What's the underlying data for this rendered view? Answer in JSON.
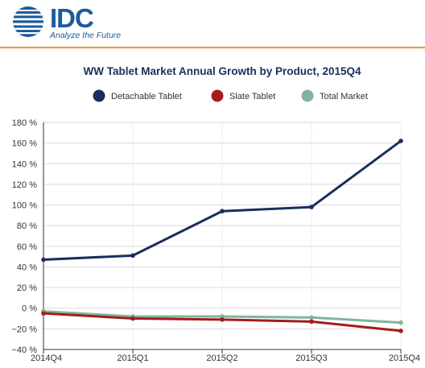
{
  "brand": {
    "name": "IDC",
    "tagline": "Analyze the Future",
    "color": "#1c5a9c",
    "accent": "#f39a2b"
  },
  "chart_data": {
    "type": "line",
    "title": "WW Tablet Market Annual Growth by Product, 2015Q4",
    "xlabel": "",
    "ylabel": "",
    "categories": [
      "2014Q4",
      "2015Q1",
      "2015Q2",
      "2015Q3",
      "2015Q4"
    ],
    "ylim": [
      -40,
      180
    ],
    "yticks": [
      180,
      160,
      140,
      120,
      100,
      80,
      60,
      40,
      20,
      0,
      -20,
      -40
    ],
    "ytick_labels": [
      "180 %",
      "160 %",
      "140 %",
      "120 %",
      "100 %",
      "80 %",
      "60 %",
      "40 %",
      "20 %",
      "0 %",
      "−20 %",
      "−40 %"
    ],
    "grid": "horizontal",
    "legend_position": "top",
    "series": [
      {
        "name": "Detachable Tablet",
        "color": "#1b2f5c",
        "values": [
          47,
          51,
          94,
          98,
          162
        ]
      },
      {
        "name": "Slate Tablet",
        "color": "#a51c1c",
        "values": [
          -5,
          -10,
          -11,
          -13,
          -22
        ]
      },
      {
        "name": "Total Market",
        "color": "#7fb59e",
        "values": [
          -3,
          -8,
          -8,
          -9,
          -14
        ]
      }
    ]
  }
}
